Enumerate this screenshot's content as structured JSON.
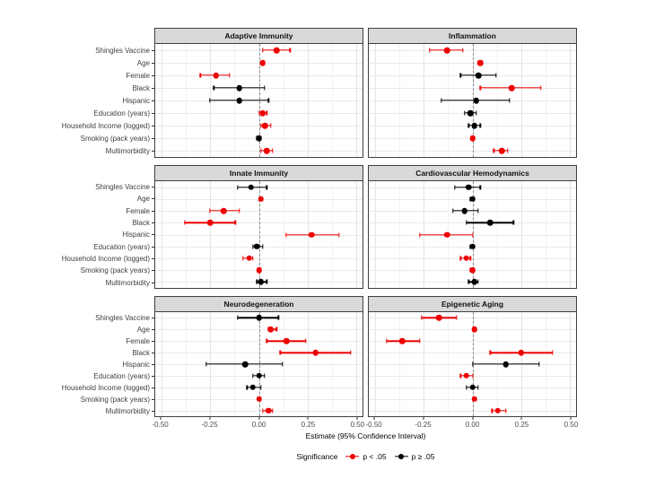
{
  "figure": {
    "xlabel": "Estimate (95% Confidence Interval)",
    "x_ticks": [
      "-0.50",
      "-0.25",
      "0.00",
      "0.25",
      "0.50"
    ],
    "legend": {
      "title": "Significance",
      "items": [
        {
          "label": "p < .05",
          "color": "#ee0000"
        },
        {
          "label": "p ≥ .05",
          "color": "#000000"
        }
      ]
    },
    "colors": {
      "significant": "#ee0000",
      "not_significant": "#000000",
      "strip_bg": "#d9d9d9",
      "panel_border": "#3f3f3f",
      "zero_line": "#8c8c8c"
    }
  },
  "chart_data": {
    "type": "scatter",
    "subtype": "faceted-forest-plot",
    "xlabel": "Estimate (95% Confidence Interval)",
    "x_range": [
      -0.5,
      0.5
    ],
    "x_major_ticks": [
      -0.5,
      -0.25,
      0,
      0.25,
      0.5
    ],
    "x_minor_ticks": [
      -0.375,
      -0.125,
      0.125,
      0.375
    ],
    "grid": true,
    "legend_position": "bottom",
    "legend_title": "Significance",
    "legend_entries": [
      "p < .05",
      "p ≥ .05"
    ],
    "categories": [
      "Shingles Vaccine",
      "Age",
      "Female",
      "Black",
      "Hispanic",
      "Education (years)",
      "Household Income (logged)",
      "Smoking (pack years)",
      "Multimorbidity"
    ],
    "panels": [
      {
        "title": "Adaptive Immunity",
        "points": [
          {
            "est": 0.09,
            "lo": 0.02,
            "hi": 0.16,
            "sig": true
          },
          {
            "est": 0.02,
            "lo": 0.01,
            "hi": 0.03,
            "sig": true
          },
          {
            "est": -0.22,
            "lo": -0.3,
            "hi": -0.15,
            "sig": true
          },
          {
            "est": -0.1,
            "lo": -0.23,
            "hi": 0.03,
            "sig": false
          },
          {
            "est": -0.1,
            "lo": -0.25,
            "hi": 0.05,
            "sig": false
          },
          {
            "est": 0.02,
            "lo": 0.0,
            "hi": 0.04,
            "sig": true
          },
          {
            "est": 0.03,
            "lo": 0.01,
            "hi": 0.06,
            "sig": true
          },
          {
            "est": 0.0,
            "lo": -0.01,
            "hi": 0.01,
            "sig": false
          },
          {
            "est": 0.04,
            "lo": 0.01,
            "hi": 0.07,
            "sig": true
          }
        ]
      },
      {
        "title": "Inflammation",
        "points": [
          {
            "est": -0.13,
            "lo": -0.22,
            "hi": -0.05,
            "sig": true
          },
          {
            "est": 0.04,
            "lo": 0.03,
            "hi": 0.05,
            "sig": true
          },
          {
            "est": 0.03,
            "lo": -0.06,
            "hi": 0.12,
            "sig": false
          },
          {
            "est": 0.2,
            "lo": 0.04,
            "hi": 0.35,
            "sig": true
          },
          {
            "est": 0.02,
            "lo": -0.16,
            "hi": 0.19,
            "sig": false
          },
          {
            "est": -0.01,
            "lo": -0.04,
            "hi": 0.02,
            "sig": false
          },
          {
            "est": 0.01,
            "lo": -0.02,
            "hi": 0.04,
            "sig": false
          },
          {
            "est": 0.0,
            "lo": 0.0,
            "hi": 0.01,
            "sig": true
          },
          {
            "est": 0.15,
            "lo": 0.11,
            "hi": 0.18,
            "sig": true
          }
        ]
      },
      {
        "title": "Innate Immunity",
        "points": [
          {
            "est": -0.04,
            "lo": -0.11,
            "hi": 0.04,
            "sig": false
          },
          {
            "est": 0.01,
            "lo": 0.0,
            "hi": 0.02,
            "sig": true
          },
          {
            "est": -0.18,
            "lo": -0.25,
            "hi": -0.1,
            "sig": true
          },
          {
            "est": -0.25,
            "lo": -0.38,
            "hi": -0.12,
            "sig": true
          },
          {
            "est": 0.27,
            "lo": 0.14,
            "hi": 0.41,
            "sig": true
          },
          {
            "est": -0.01,
            "lo": -0.03,
            "hi": 0.02,
            "sig": false
          },
          {
            "est": -0.05,
            "lo": -0.08,
            "hi": -0.03,
            "sig": true
          },
          {
            "est": 0.0,
            "lo": 0.0,
            "hi": 0.01,
            "sig": true
          },
          {
            "est": 0.01,
            "lo": -0.01,
            "hi": 0.04,
            "sig": false
          }
        ]
      },
      {
        "title": "Cardiovascular Hemodynamics",
        "points": [
          {
            "est": -0.02,
            "lo": -0.09,
            "hi": 0.04,
            "sig": false
          },
          {
            "est": 0.0,
            "lo": -0.01,
            "hi": 0.01,
            "sig": false
          },
          {
            "est": -0.04,
            "lo": -0.1,
            "hi": 0.03,
            "sig": false
          },
          {
            "est": 0.09,
            "lo": -0.03,
            "hi": 0.21,
            "sig": false
          },
          {
            "est": -0.13,
            "lo": -0.27,
            "hi": 0.0,
            "sig": true
          },
          {
            "est": 0.0,
            "lo": -0.01,
            "hi": 0.01,
            "sig": false
          },
          {
            "est": -0.03,
            "lo": -0.06,
            "hi": -0.01,
            "sig": true
          },
          {
            "est": 0.0,
            "lo": -0.01,
            "hi": 0.01,
            "sig": true
          },
          {
            "est": 0.01,
            "lo": -0.02,
            "hi": 0.03,
            "sig": false
          }
        ]
      },
      {
        "title": "Neurodegeneration",
        "points": [
          {
            "est": 0.0,
            "lo": -0.11,
            "hi": 0.1,
            "sig": false
          },
          {
            "est": 0.06,
            "lo": 0.05,
            "hi": 0.09,
            "sig": true
          },
          {
            "est": 0.14,
            "lo": 0.04,
            "hi": 0.24,
            "sig": true
          },
          {
            "est": 0.29,
            "lo": 0.11,
            "hi": 0.47,
            "sig": true
          },
          {
            "est": -0.07,
            "lo": -0.27,
            "hi": 0.12,
            "sig": false
          },
          {
            "est": 0.0,
            "lo": -0.03,
            "hi": 0.03,
            "sig": false
          },
          {
            "est": -0.03,
            "lo": -0.06,
            "hi": 0.01,
            "sig": false
          },
          {
            "est": 0.0,
            "lo": 0.0,
            "hi": 0.01,
            "sig": true
          },
          {
            "est": 0.05,
            "lo": 0.02,
            "hi": 0.07,
            "sig": true
          }
        ]
      },
      {
        "title": "Epigenetic Aging",
        "points": [
          {
            "est": -0.17,
            "lo": -0.26,
            "hi": -0.08,
            "sig": true
          },
          {
            "est": 0.01,
            "lo": 0.0,
            "hi": 0.02,
            "sig": true
          },
          {
            "est": -0.36,
            "lo": -0.44,
            "hi": -0.27,
            "sig": true
          },
          {
            "est": 0.25,
            "lo": 0.09,
            "hi": 0.41,
            "sig": true
          },
          {
            "est": 0.17,
            "lo": 0.0,
            "hi": 0.34,
            "sig": false
          },
          {
            "est": -0.03,
            "lo": -0.06,
            "hi": 0.0,
            "sig": true
          },
          {
            "est": 0.0,
            "lo": -0.03,
            "hi": 0.03,
            "sig": false
          },
          {
            "est": 0.01,
            "lo": 0.0,
            "hi": 0.02,
            "sig": true
          },
          {
            "est": 0.13,
            "lo": 0.1,
            "hi": 0.17,
            "sig": true
          }
        ]
      }
    ]
  }
}
